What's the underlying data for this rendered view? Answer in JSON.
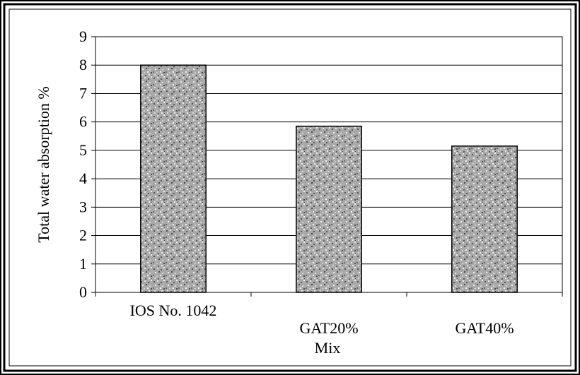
{
  "chart_data": {
    "type": "bar",
    "title": "",
    "xlabel": "Mix",
    "ylabel": "Total water absorption %",
    "categories": [
      "IOS No. 1042",
      "GAT20%",
      "GAT40%"
    ],
    "values": [
      8.0,
      5.85,
      5.15
    ],
    "ylim": [
      0,
      9
    ],
    "yticks": [
      "0",
      "1",
      "2",
      "3",
      "4",
      "5",
      "6",
      "7",
      "8",
      "9"
    ],
    "grid": true,
    "legend": "none",
    "colors": {
      "plot_background": "#ffffff",
      "chart_background": "#ffffff",
      "bar_fill": "#a9a9a9",
      "bar_speckle_dark": "#555555",
      "bar_speckle_light": "#e6e6e6",
      "gridline": "#000000",
      "border": "#000000"
    }
  }
}
